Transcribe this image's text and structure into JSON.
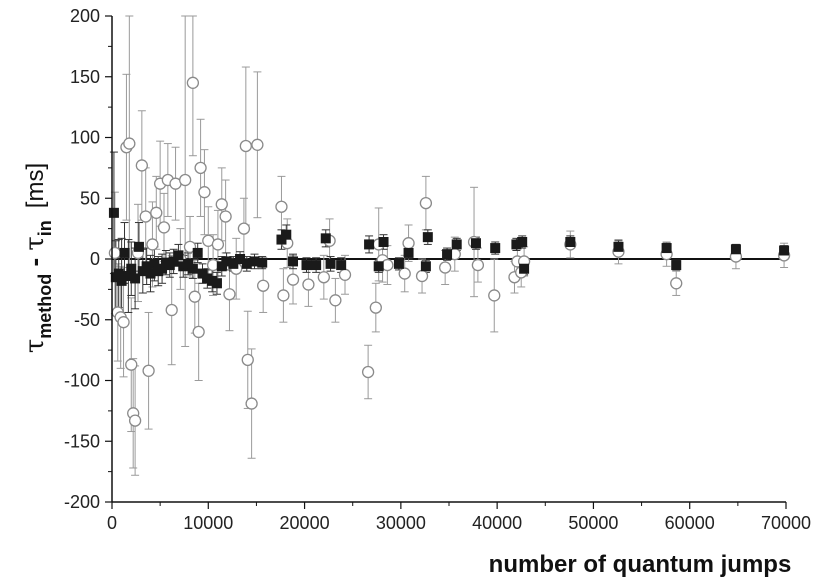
{
  "chart_data": {
    "type": "scatter",
    "xlabel": "number of quantum jumps",
    "ylabel": {
      "symbol": "τ",
      "sub1": "method",
      "minus": " - ",
      "sub2": "in",
      "unit": "[ms]"
    },
    "xlim": [
      0,
      70000
    ],
    "ylim": [
      -200,
      200
    ],
    "x_ticks": [
      0,
      10000,
      20000,
      30000,
      40000,
      50000,
      60000,
      70000
    ],
    "x_tick_labels": [
      "0",
      "10000",
      "20000",
      "30000",
      "40000",
      "50000",
      "60000",
      "70000"
    ],
    "y_ticks": [
      -200,
      -150,
      -100,
      -50,
      0,
      50,
      100,
      150,
      200
    ],
    "y_tick_labels": [
      "-200",
      "-150",
      "-100",
      "-50",
      "0",
      "50",
      "100",
      "150",
      "200"
    ],
    "reference_line_y": 0,
    "grid": false,
    "legend": "none",
    "series": [
      {
        "marker": "filled-square",
        "color": "#1a1a1a",
        "points": [
          {
            "x": 200,
            "y": 38,
            "err": 50
          },
          {
            "x": 400,
            "y": -15,
            "err": 30
          },
          {
            "x": 700,
            "y": -12,
            "err": 28
          },
          {
            "x": 1000,
            "y": -18,
            "err": 35
          },
          {
            "x": 1300,
            "y": 5,
            "err": 25
          },
          {
            "x": 1700,
            "y": -14,
            "err": 30
          },
          {
            "x": 2000,
            "y": -8,
            "err": 22
          },
          {
            "x": 2400,
            "y": -16,
            "err": 25
          },
          {
            "x": 2800,
            "y": 10,
            "err": 20
          },
          {
            "x": 3200,
            "y": -10,
            "err": 18
          },
          {
            "x": 3600,
            "y": -6,
            "err": 15
          },
          {
            "x": 4000,
            "y": -12,
            "err": 15
          },
          {
            "x": 4400,
            "y": -4,
            "err": 14
          },
          {
            "x": 4800,
            "y": -10,
            "err": 12
          },
          {
            "x": 5200,
            "y": -8,
            "err": 12
          },
          {
            "x": 5600,
            "y": -3,
            "err": 10
          },
          {
            "x": 6000,
            "y": -5,
            "err": 10
          },
          {
            "x": 6400,
            "y": -2,
            "err": 10
          },
          {
            "x": 6900,
            "y": 3,
            "err": 9
          },
          {
            "x": 7400,
            "y": -6,
            "err": 9
          },
          {
            "x": 7900,
            "y": -4,
            "err": 9
          },
          {
            "x": 8400,
            "y": -8,
            "err": 8
          },
          {
            "x": 8900,
            "y": 5,
            "err": 8
          },
          {
            "x": 9400,
            "y": -12,
            "err": 8
          },
          {
            "x": 9900,
            "y": -16,
            "err": 8
          },
          {
            "x": 10400,
            "y": -18,
            "err": 9
          },
          {
            "x": 10900,
            "y": -20,
            "err": 9
          },
          {
            "x": 11400,
            "y": -6,
            "err": 8
          },
          {
            "x": 11900,
            "y": -2,
            "err": 7
          },
          {
            "x": 12600,
            "y": -4,
            "err": 6
          },
          {
            "x": 13300,
            "y": 0,
            "err": 6
          },
          {
            "x": 14000,
            "y": -4,
            "err": 6
          },
          {
            "x": 14800,
            "y": -2,
            "err": 6
          },
          {
            "x": 15600,
            "y": -3,
            "err": 5
          },
          {
            "x": 17600,
            "y": 16,
            "err": 8
          },
          {
            "x": 18100,
            "y": 20,
            "err": 8
          },
          {
            "x": 18800,
            "y": -2,
            "err": 6
          },
          {
            "x": 20200,
            "y": -5,
            "err": 6
          },
          {
            "x": 21200,
            "y": -5,
            "err": 6
          },
          {
            "x": 22200,
            "y": 17,
            "err": 7
          },
          {
            "x": 22700,
            "y": -4,
            "err": 6
          },
          {
            "x": 23800,
            "y": -5,
            "err": 6
          },
          {
            "x": 26700,
            "y": 12,
            "err": 7
          },
          {
            "x": 27700,
            "y": -6,
            "err": 5
          },
          {
            "x": 28200,
            "y": 14,
            "err": 6
          },
          {
            "x": 29800,
            "y": -4,
            "err": 5
          },
          {
            "x": 30800,
            "y": 5,
            "err": 5
          },
          {
            "x": 32600,
            "y": -6,
            "err": 5
          },
          {
            "x": 32800,
            "y": 18,
            "err": 6
          },
          {
            "x": 34800,
            "y": 4,
            "err": 5
          },
          {
            "x": 35800,
            "y": 12,
            "err": 5
          },
          {
            "x": 37800,
            "y": 13,
            "err": 5
          },
          {
            "x": 39800,
            "y": 9,
            "err": 5
          },
          {
            "x": 42000,
            "y": 12,
            "err": 5
          },
          {
            "x": 42600,
            "y": 14,
            "err": 5
          },
          {
            "x": 42800,
            "y": -8,
            "err": 5
          },
          {
            "x": 47600,
            "y": 14,
            "err": 5
          },
          {
            "x": 52600,
            "y": 10,
            "err": 5
          },
          {
            "x": 57600,
            "y": 9,
            "err": 4
          },
          {
            "x": 58600,
            "y": -5,
            "err": 4
          },
          {
            "x": 64800,
            "y": 8,
            "err": 4
          },
          {
            "x": 69800,
            "y": 7,
            "err": 4
          }
        ]
      },
      {
        "marker": "open-circle",
        "color": "#8a8a8a",
        "points": [
          {
            "x": 300,
            "y": 5,
            "err": 50
          },
          {
            "x": 600,
            "y": -44,
            "err": 40
          },
          {
            "x": 900,
            "y": -48,
            "err": 42
          },
          {
            "x": 1200,
            "y": -52,
            "err": 45
          },
          {
            "x": 1500,
            "y": 92,
            "err": 60
          },
          {
            "x": 1800,
            "y": 95,
            "err": 110
          },
          {
            "x": 2000,
            "y": -87,
            "err": 55
          },
          {
            "x": 2200,
            "y": -127,
            "err": 45
          },
          {
            "x": 2400,
            "y": -133,
            "err": 45
          },
          {
            "x": 2700,
            "y": 5,
            "err": 40
          },
          {
            "x": 3100,
            "y": 77,
            "err": 45
          },
          {
            "x": 3500,
            "y": 35,
            "err": 40
          },
          {
            "x": 3800,
            "y": -92,
            "err": 48
          },
          {
            "x": 4200,
            "y": 12,
            "err": 35
          },
          {
            "x": 4600,
            "y": 38,
            "err": 30
          },
          {
            "x": 5000,
            "y": 62,
            "err": 35
          },
          {
            "x": 5400,
            "y": 26,
            "err": 28
          },
          {
            "x": 5800,
            "y": 65,
            "err": 30
          },
          {
            "x": 6200,
            "y": -42,
            "err": 45
          },
          {
            "x": 6600,
            "y": 62,
            "err": 30
          },
          {
            "x": 7100,
            "y": 0,
            "err": 25
          },
          {
            "x": 7600,
            "y": 65,
            "err": 137
          },
          {
            "x": 8100,
            "y": 10,
            "err": 25
          },
          {
            "x": 8400,
            "y": 145,
            "err": 60
          },
          {
            "x": 8600,
            "y": -31,
            "err": 30
          },
          {
            "x": 9000,
            "y": -60,
            "err": 40
          },
          {
            "x": 9200,
            "y": 75,
            "err": 40
          },
          {
            "x": 9600,
            "y": 55,
            "err": 35
          },
          {
            "x": 10000,
            "y": 15,
            "err": 28
          },
          {
            "x": 10500,
            "y": -5,
            "err": 25
          },
          {
            "x": 11000,
            "y": 12,
            "err": 28
          },
          {
            "x": 11400,
            "y": 45,
            "err": 30
          },
          {
            "x": 11800,
            "y": 35,
            "err": 30
          },
          {
            "x": 12200,
            "y": -29,
            "err": 30
          },
          {
            "x": 12900,
            "y": -8,
            "err": 25
          },
          {
            "x": 13700,
            "y": 25,
            "err": 25
          },
          {
            "x": 13900,
            "y": 93,
            "err": 65
          },
          {
            "x": 14100,
            "y": -83,
            "err": 40
          },
          {
            "x": 14500,
            "y": -119,
            "err": 45
          },
          {
            "x": 15100,
            "y": 94,
            "err": 60
          },
          {
            "x": 15700,
            "y": -22,
            "err": 22
          },
          {
            "x": 17600,
            "y": 43,
            "err": 25
          },
          {
            "x": 17800,
            "y": -30,
            "err": 22
          },
          {
            "x": 18200,
            "y": 13,
            "err": 20
          },
          {
            "x": 18800,
            "y": -17,
            "err": 20
          },
          {
            "x": 20400,
            "y": -21,
            "err": 18
          },
          {
            "x": 22000,
            "y": -15,
            "err": 18
          },
          {
            "x": 22600,
            "y": 15,
            "err": 18
          },
          {
            "x": 23200,
            "y": -34,
            "err": 18
          },
          {
            "x": 24200,
            "y": -13,
            "err": 16
          },
          {
            "x": 26600,
            "y": -93,
            "err": 22
          },
          {
            "x": 27400,
            "y": -40,
            "err": 20
          },
          {
            "x": 27700,
            "y": 12,
            "err": 30
          },
          {
            "x": 28100,
            "y": -1,
            "err": 18
          },
          {
            "x": 28600,
            "y": -5,
            "err": 16
          },
          {
            "x": 30400,
            "y": -12,
            "err": 15
          },
          {
            "x": 30800,
            "y": 13,
            "err": 15
          },
          {
            "x": 32200,
            "y": -14,
            "err": 14
          },
          {
            "x": 32600,
            "y": 46,
            "err": 22
          },
          {
            "x": 34600,
            "y": -7,
            "err": 14
          },
          {
            "x": 35600,
            "y": 4,
            "err": 14
          },
          {
            "x": 37600,
            "y": 14,
            "err": 45
          },
          {
            "x": 38000,
            "y": -5,
            "err": 14
          },
          {
            "x": 39700,
            "y": -30,
            "err": 30
          },
          {
            "x": 41800,
            "y": -15,
            "err": 13
          },
          {
            "x": 42100,
            "y": -2,
            "err": 12
          },
          {
            "x": 42500,
            "y": -11,
            "err": 12
          },
          {
            "x": 42800,
            "y": -2,
            "err": 12
          },
          {
            "x": 47600,
            "y": 12,
            "err": 11
          },
          {
            "x": 52600,
            "y": 6,
            "err": 10
          },
          {
            "x": 57600,
            "y": 4,
            "err": 10
          },
          {
            "x": 58600,
            "y": -20,
            "err": 10
          },
          {
            "x": 64800,
            "y": 2,
            "err": 10
          },
          {
            "x": 69800,
            "y": 3,
            "err": 10
          }
        ]
      }
    ]
  }
}
